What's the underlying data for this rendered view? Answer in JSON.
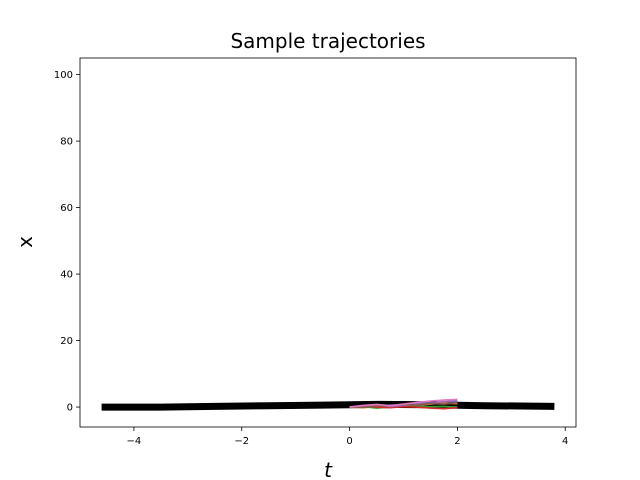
{
  "chart_data": {
    "type": "line",
    "title": "Sample trajectories",
    "xlabel": "t",
    "ylabel": "x",
    "xlim": [
      -5.0,
      4.2
    ],
    "ylim": [
      -6,
      105
    ],
    "xticks": [
      -4,
      -2,
      0,
      2,
      4
    ],
    "yticks": [
      0,
      20,
      40,
      60,
      80,
      100
    ],
    "grid": false,
    "legend": "none",
    "series": [
      {
        "color": "#000000",
        "style": "thick",
        "x": [
          -4.6,
          -3.5,
          -2.5,
          -1.5,
          -0.5,
          0.5,
          1.5,
          2.5,
          3.8
        ],
        "y": [
          0.0,
          0.0,
          0.2,
          0.4,
          0.6,
          0.8,
          0.7,
          0.4,
          0.2
        ]
      },
      {
        "color": "#1f77b4",
        "x": [
          0.0,
          0.25,
          0.5,
          0.75,
          1.0,
          1.25,
          1.5,
          1.75,
          2.0
        ],
        "y": [
          0.0,
          0.3,
          0.2,
          0.6,
          0.5,
          1.0,
          1.3,
          1.1,
          1.4
        ]
      },
      {
        "color": "#ff7f0e",
        "x": [
          0.0,
          0.25,
          0.5,
          0.75,
          1.0,
          1.25,
          1.5,
          1.75,
          2.0
        ],
        "y": [
          0.0,
          -0.2,
          0.1,
          0.3,
          0.2,
          0.6,
          0.9,
          1.2,
          1.0
        ]
      },
      {
        "color": "#2ca02c",
        "x": [
          0.0,
          0.25,
          0.5,
          0.75,
          1.0,
          1.25,
          1.5,
          1.75,
          2.0
        ],
        "y": [
          0.0,
          0.1,
          -0.3,
          0.0,
          0.4,
          0.3,
          0.1,
          0.2,
          0.0
        ]
      },
      {
        "color": "#d62728",
        "x": [
          0.0,
          0.25,
          0.5,
          0.75,
          1.0,
          1.25,
          1.5,
          1.75,
          2.0
        ],
        "y": [
          0.0,
          0.2,
          0.0,
          -0.2,
          0.1,
          0.0,
          -0.3,
          -0.5,
          -0.2
        ]
      },
      {
        "color": "#9467bd",
        "x": [
          0.0,
          0.25,
          0.5,
          0.75,
          1.0,
          1.25,
          1.5,
          1.75,
          2.0
        ],
        "y": [
          0.0,
          0.4,
          0.6,
          0.2,
          0.5,
          0.9,
          1.2,
          1.6,
          1.9
        ]
      },
      {
        "color": "#8c564b",
        "x": [
          0.0,
          0.25,
          0.5,
          0.75,
          1.0,
          1.25,
          1.5,
          1.75,
          2.0
        ],
        "y": [
          0.0,
          -0.1,
          0.3,
          0.5,
          0.8,
          0.6,
          1.1,
          0.9,
          1.3
        ]
      },
      {
        "color": "#e377c2",
        "x": [
          0.0,
          0.25,
          0.5,
          0.75,
          1.0,
          1.25,
          1.5,
          1.75,
          2.0
        ],
        "y": [
          0.0,
          0.5,
          0.8,
          0.4,
          0.9,
          1.4,
          1.8,
          2.1,
          2.3
        ]
      }
    ]
  }
}
